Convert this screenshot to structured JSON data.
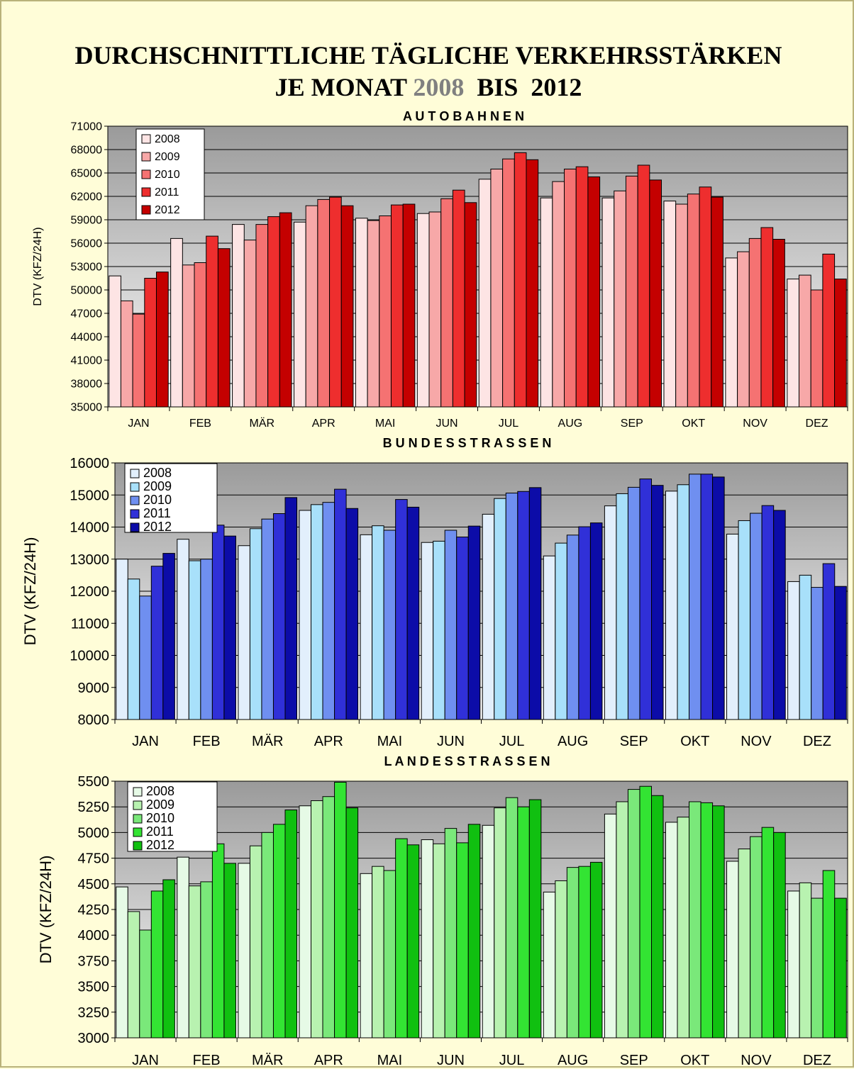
{
  "header": {
    "line1": "DURCHSCHNITTLICHE TÄGLICHE VERKEHRSSTÄRKEN",
    "line2_prefix": "JE MONAT",
    "year_start": "2008",
    "connector": "BIS",
    "year_end": "2012"
  },
  "chart_data": [
    {
      "type": "bar",
      "title": "A U T O B A H N E N",
      "ylabel": "DTV (KFZ/24H)",
      "ylim": [
        35000,
        71000
      ],
      "yticks": [
        35000,
        38000,
        41000,
        44000,
        47000,
        50000,
        53000,
        56000,
        59000,
        62000,
        65000,
        68000,
        71000
      ],
      "categories": [
        "JAN",
        "FEB",
        "MÄR",
        "APR",
        "MAI",
        "JUN",
        "JUL",
        "AUG",
        "SEP",
        "OKT",
        "NOV",
        "DEZ"
      ],
      "legend_position": "top-left",
      "series": [
        {
          "name": "2008",
          "color": "#fde4e4",
          "values": [
            51800,
            56600,
            58400,
            58700,
            59200,
            59800,
            64200,
            61800,
            61800,
            61400,
            54100,
            51400
          ]
        },
        {
          "name": "2009",
          "color": "#f7a8a8",
          "values": [
            48600,
            53200,
            56400,
            60800,
            58900,
            60000,
            65500,
            63900,
            62700,
            61000,
            54900,
            51900
          ]
        },
        {
          "name": "2010",
          "color": "#f57272",
          "values": [
            46900,
            53500,
            58400,
            61600,
            59500,
            61700,
            66800,
            65500,
            64600,
            62300,
            56600,
            50000
          ]
        },
        {
          "name": "2011",
          "color": "#ee2e2e",
          "values": [
            51500,
            56900,
            59400,
            61900,
            60900,
            62800,
            67600,
            65800,
            66000,
            63200,
            58000,
            54600
          ]
        },
        {
          "name": "2012",
          "color": "#c40000",
          "values": [
            52300,
            55300,
            59900,
            60800,
            61000,
            61200,
            66700,
            64500,
            64100,
            61900,
            56500,
            51400
          ]
        }
      ]
    },
    {
      "type": "bar",
      "title": "B U N D E S S T R A S S E N",
      "ylabel": "DTV (KFZ/24H)",
      "ylim": [
        8000,
        16000
      ],
      "yticks": [
        8000,
        9000,
        10000,
        11000,
        12000,
        13000,
        14000,
        15000,
        16000
      ],
      "categories": [
        "JAN",
        "FEB",
        "MÄR",
        "APR",
        "MAI",
        "JUN",
        "JUL",
        "AUG",
        "SEP",
        "OKT",
        "NOV",
        "DEZ"
      ],
      "legend_position": "top-left",
      "series": [
        {
          "name": "2008",
          "color": "#e2effc",
          "values": [
            13000,
            13620,
            13420,
            14520,
            13760,
            13520,
            14400,
            13100,
            14660,
            15120,
            13780,
            12300
          ]
        },
        {
          "name": "2009",
          "color": "#a8e0fa",
          "values": [
            12380,
            12950,
            13950,
            14700,
            14040,
            13560,
            14890,
            13500,
            15040,
            15320,
            14200,
            12500
          ]
        },
        {
          "name": "2010",
          "color": "#6f8ff0",
          "values": [
            11850,
            13000,
            14250,
            14770,
            13900,
            13900,
            15060,
            13750,
            15240,
            15650,
            14430,
            12120
          ]
        },
        {
          "name": "2011",
          "color": "#3030d8",
          "values": [
            12780,
            14060,
            14420,
            15180,
            14860,
            13690,
            15110,
            14010,
            15500,
            15650,
            14670,
            12860
          ]
        },
        {
          "name": "2012",
          "color": "#0c0ca8",
          "values": [
            13180,
            13720,
            14920,
            14580,
            14620,
            14030,
            15230,
            14130,
            15300,
            15560,
            14520,
            12150
          ]
        }
      ]
    },
    {
      "type": "bar",
      "title": "L A N D E S S T R A S S E N",
      "ylabel": "DTV (KFZ/24H)",
      "ylim": [
        3000,
        5500
      ],
      "yticks": [
        3000,
        3250,
        3500,
        3750,
        4000,
        4250,
        4500,
        4750,
        5000,
        5250,
        5500
      ],
      "categories": [
        "JAN",
        "FEB",
        "MÄR",
        "APR",
        "MAI",
        "JUN",
        "JUL",
        "AUG",
        "SEP",
        "OKT",
        "NOV",
        "DEZ"
      ],
      "legend_position": "top-left",
      "series": [
        {
          "name": "2008",
          "color": "#e6fae6",
          "values": [
            4470,
            4760,
            4700,
            5260,
            4600,
            4930,
            5070,
            4420,
            5180,
            5100,
            4720,
            4430
          ]
        },
        {
          "name": "2009",
          "color": "#b8f2b0",
          "values": [
            4230,
            4480,
            4870,
            5310,
            4670,
            4890,
            5240,
            4530,
            5300,
            5150,
            4840,
            4510
          ]
        },
        {
          "name": "2010",
          "color": "#7ae87a",
          "values": [
            4050,
            4520,
            5000,
            5350,
            4630,
            5040,
            5340,
            4660,
            5420,
            5300,
            4960,
            4360
          ]
        },
        {
          "name": "2011",
          "color": "#33e433",
          "values": [
            4430,
            4890,
            5080,
            5490,
            4940,
            4900,
            5250,
            4670,
            5450,
            5290,
            5050,
            4630
          ]
        },
        {
          "name": "2012",
          "color": "#10c010",
          "values": [
            4540,
            4700,
            5220,
            5240,
            4880,
            5080,
            5320,
            4710,
            5360,
            5260,
            5000,
            4360
          ]
        }
      ]
    }
  ]
}
